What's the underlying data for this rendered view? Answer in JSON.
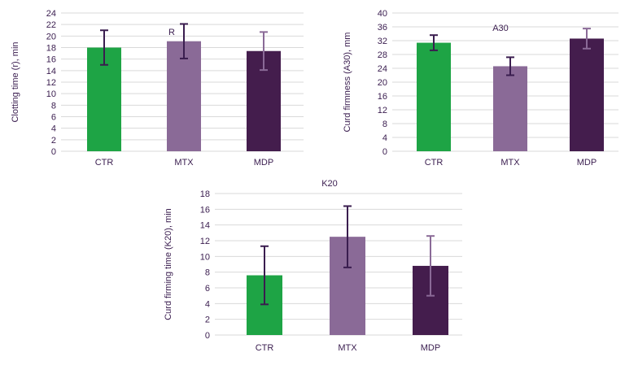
{
  "chart_data": [
    {
      "type": "bar",
      "title": "R",
      "ylabel": "Clotting time (r), min",
      "categories": [
        "CTR",
        "MTX",
        "MDP"
      ],
      "values": [
        18.0,
        19.1,
        17.4
      ],
      "errors": [
        3.0,
        3.0,
        3.3
      ],
      "ylim": [
        0,
        24
      ],
      "yticks": [
        0,
        2,
        4,
        6,
        8,
        10,
        12,
        14,
        16,
        18,
        20,
        22,
        24
      ],
      "bar_colors": [
        "#1ea445",
        "#8a6a97",
        "#441d4d"
      ],
      "error_colors": [
        "#3a1d4f",
        "#3a1d4f",
        "#8a6a97"
      ],
      "grid": true
    },
    {
      "type": "bar",
      "title": "A30",
      "ylabel": "Curd firmness (A30), mm",
      "categories": [
        "CTR",
        "MTX",
        "MDP"
      ],
      "values": [
        31.4,
        24.6,
        32.6
      ],
      "errors": [
        2.2,
        2.6,
        2.9
      ],
      "ylim": [
        0,
        40
      ],
      "yticks": [
        0,
        4,
        8,
        12,
        16,
        20,
        24,
        28,
        32,
        36,
        40
      ],
      "bar_colors": [
        "#1ea445",
        "#8a6a97",
        "#441d4d"
      ],
      "error_colors": [
        "#3a1d4f",
        "#3a1d4f",
        "#8a6a97"
      ],
      "grid": true
    },
    {
      "type": "bar",
      "title": "K20",
      "ylabel": "Curd firming time (K20), min",
      "categories": [
        "CTR",
        "MTX",
        "MDP"
      ],
      "values": [
        7.6,
        12.5,
        8.8
      ],
      "errors": [
        3.7,
        3.9,
        3.8
      ],
      "ylim": [
        0,
        18
      ],
      "yticks": [
        0,
        2,
        4,
        6,
        8,
        10,
        12,
        14,
        16,
        18
      ],
      "bar_colors": [
        "#1ea445",
        "#8a6a97",
        "#441d4d"
      ],
      "error_colors": [
        "#3a1d4f",
        "#3a1d4f",
        "#8a6a97"
      ],
      "grid": true
    }
  ]
}
